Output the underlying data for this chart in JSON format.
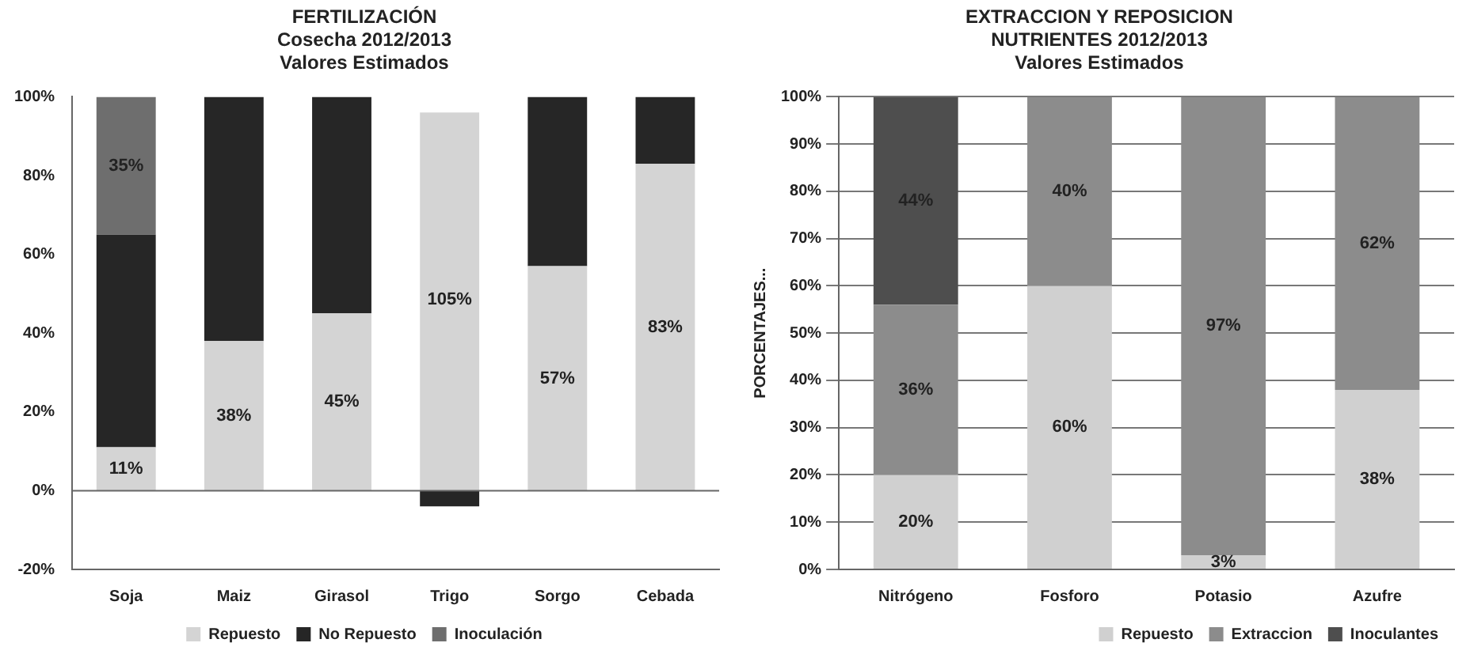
{
  "chart_data": [
    {
      "type": "bar",
      "title": "FERTILIZACIÓN",
      "subtitle": "Cosecha 2012/2013\nValores Estimados",
      "stacked": true,
      "categories": [
        "Soja",
        "Maiz",
        "Girasol",
        "Trigo",
        "Sorgo",
        "Cebada"
      ],
      "series": [
        {
          "name": "Repuesto",
          "color": "#d4d4d4",
          "values": [
            11,
            38,
            45,
            96,
            57,
            83
          ],
          "value_labels": [
            "11%",
            "38%",
            "45%",
            null,
            "57%",
            "83%"
          ]
        },
        {
          "name": "No Repuesto",
          "color": "#262626",
          "values": [
            54,
            62,
            55,
            -4,
            43,
            17
          ],
          "value_labels": [
            null,
            null,
            null,
            null,
            null,
            null
          ]
        },
        {
          "name": "Inoculación",
          "color": "#6e6e6e",
          "values": [
            35,
            null,
            null,
            null,
            null,
            null
          ],
          "value_labels": [
            "35%",
            null,
            null,
            null,
            null,
            null
          ]
        }
      ],
      "annotations": [
        "105%"
      ],
      "ref_lines": [
        {
          "axis": "y",
          "value": 0
        }
      ],
      "ylim": [
        -20,
        100
      ],
      "yticks": [
        {
          "value": -20,
          "label": "-20%"
        },
        {
          "value": 0,
          "label": "0%"
        },
        {
          "value": 20,
          "label": "20%"
        },
        {
          "value": 40,
          "label": "40%"
        },
        {
          "value": 60,
          "label": "60%"
        },
        {
          "value": 80,
          "label": "80%"
        },
        {
          "value": 100,
          "label": "100%"
        }
      ],
      "grid": false,
      "legend": "bottom"
    },
    {
      "type": "bar",
      "title": "EXTRACCION Y REPOSICION\nNUTRIENTES 2012/2013",
      "subtitle": "Valores Estimados",
      "ylabel": "PORCENTAJES...",
      "stacked": true,
      "categories": [
        "Nitrógeno",
        "Fosforo",
        "Potasio",
        "Azufre"
      ],
      "series": [
        {
          "name": "Repuesto",
          "color": "#d0d0d0",
          "values": [
            20,
            60,
            3,
            38
          ],
          "value_labels": [
            "20%",
            "60%",
            "3%",
            "38%"
          ]
        },
        {
          "name": "Extraccion",
          "color": "#8c8c8c",
          "values": [
            36,
            40,
            97,
            62
          ],
          "value_labels": [
            "36%",
            "40%",
            "97%",
            "62%"
          ]
        },
        {
          "name": "Inoculantes",
          "color": "#4e4e4e",
          "values": [
            44,
            null,
            null,
            null
          ],
          "value_labels": [
            "44%",
            null,
            null,
            null
          ]
        }
      ],
      "ylim": [
        0,
        100
      ],
      "yticks": [
        {
          "value": 0,
          "label": "0%"
        },
        {
          "value": 10,
          "label": "10%"
        },
        {
          "value": 20,
          "label": "20%"
        },
        {
          "value": 30,
          "label": "30%"
        },
        {
          "value": 40,
          "label": "40%"
        },
        {
          "value": 50,
          "label": "50%"
        },
        {
          "value": 60,
          "label": "60%"
        },
        {
          "value": 70,
          "label": "70%"
        },
        {
          "value": 80,
          "label": "80%"
        },
        {
          "value": 90,
          "label": "90%"
        },
        {
          "value": 100,
          "label": "100%"
        }
      ],
      "grid": "y",
      "legend": "bottom right"
    }
  ]
}
